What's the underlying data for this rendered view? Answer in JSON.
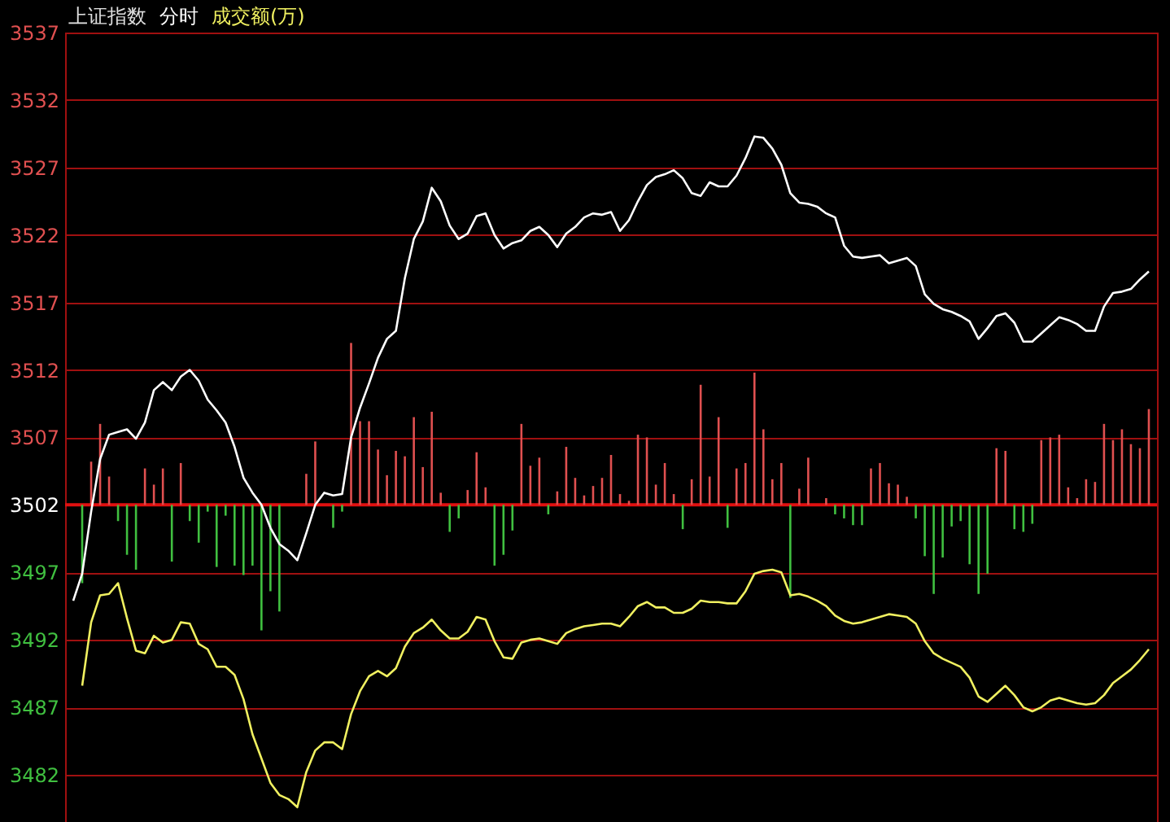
{
  "chart_data": {
    "type": "bar",
    "title": "上证指数",
    "grid": "y",
    "tick_labels": "y",
    "marker": "none",
    "categories": [
      null,
      null,
      null,
      null,
      null,
      null,
      null,
      null,
      null,
      null,
      null,
      null,
      null,
      null,
      null,
      null,
      null,
      null,
      null,
      null,
      null,
      null,
      null,
      null,
      null,
      null,
      null,
      null,
      null,
      null,
      null,
      null,
      null,
      null,
      null,
      null,
      null,
      null,
      null,
      null,
      null,
      null,
      null,
      null,
      null,
      null,
      null,
      null,
      null,
      null,
      null,
      null,
      null,
      null,
      null,
      null,
      null,
      null,
      null,
      null,
      null,
      null,
      null,
      null,
      null,
      null,
      null,
      null,
      null,
      null,
      null,
      null,
      null,
      null,
      null,
      null,
      null,
      null,
      null,
      null,
      null,
      null,
      null,
      null,
      null,
      null,
      null,
      null,
      null,
      null,
      null,
      null,
      null,
      null,
      null,
      null,
      null,
      null,
      null,
      null,
      null,
      null,
      null,
      null,
      null,
      null,
      null,
      null,
      null,
      null,
      null,
      null,
      null,
      null,
      null,
      null,
      null,
      null,
      null,
      null,
      null
    ],
    "ylim": [
      3478.5,
      3537
    ],
    "yticks": [
      3482,
      3487,
      3492,
      3497,
      3502,
      3507,
      3512,
      3517,
      3522,
      3527,
      3532,
      3537
    ],
    "ref_lines": [
      {
        "axis": "y",
        "value": 3502,
        "color": "#e01010"
      }
    ],
    "series": [
      {
        "color": "#e05050",
        "base": [
          null,
          null,
          3502,
          3502,
          3502,
          null,
          null,
          null,
          3502,
          3502,
          3502,
          null,
          3502,
          null,
          null,
          null,
          null,
          null,
          null,
          null,
          null,
          null,
          null,
          null,
          null,
          null,
          3502,
          3502,
          null,
          null,
          null,
          3502,
          3502,
          3502,
          3502,
          3502,
          3502,
          3502,
          3502,
          3502,
          3502,
          3502,
          null,
          null,
          3502,
          3502,
          3502,
          null,
          null,
          null,
          3502,
          3502,
          3502,
          null,
          3502,
          3502,
          3502,
          3502,
          3502,
          3502,
          3502,
          3502,
          3502,
          3502,
          3502,
          3502,
          3502,
          3502,
          null,
          3502,
          3502,
          3502,
          3502,
          null,
          3502,
          3502,
          3502,
          3502,
          3502,
          3502,
          null,
          3502,
          3502,
          null,
          3502,
          null,
          null,
          null,
          null,
          3502,
          3502,
          3502,
          3502,
          3502,
          null,
          null,
          null,
          null,
          null,
          null,
          null,
          null,
          null,
          3502,
          3502,
          null,
          null,
          null,
          3502,
          3502,
          3502,
          3502,
          3502,
          3502,
          3502,
          3502,
          3502,
          3502,
          3502,
          3502,
          3502
        ],
        "values": [
          null,
          null,
          3.2,
          6.0,
          2.1,
          null,
          null,
          null,
          2.7,
          1.5,
          2.7,
          null,
          3.1,
          null,
          null,
          null,
          null,
          null,
          null,
          null,
          null,
          null,
          null,
          null,
          null,
          null,
          2.3,
          4.7,
          null,
          null,
          null,
          12.0,
          6.2,
          6.2,
          4.1,
          2.2,
          4.0,
          3.6,
          6.5,
          2.8,
          6.9,
          0.9,
          null,
          null,
          1.1,
          3.9,
          1.3,
          null,
          null,
          null,
          6.0,
          2.9,
          3.5,
          null,
          1.0,
          4.3,
          2.0,
          0.7,
          1.4,
          2.0,
          3.7,
          0.8,
          0.3,
          5.2,
          5.0,
          1.5,
          3.1,
          0.8,
          null,
          1.9,
          8.9,
          2.1,
          6.5,
          null,
          2.7,
          3.1,
          9.8,
          5.6,
          1.9,
          3.1,
          null,
          1.2,
          3.5,
          null,
          0.5,
          null,
          null,
          null,
          null,
          2.7,
          3.1,
          1.6,
          1.5,
          0.6,
          null,
          null,
          null,
          null,
          null,
          null,
          null,
          null,
          null,
          4.2,
          4.0,
          null,
          null,
          null,
          4.8,
          5.0,
          5.2,
          1.3,
          0.5,
          1.9,
          1.7,
          6.0,
          4.8,
          5.6,
          4.5,
          4.2,
          7.1
        ]
      },
      {
        "color": "#40c040",
        "base": [
          null,
          3502,
          null,
          null,
          null,
          3502,
          3502,
          3502,
          null,
          null,
          null,
          3502,
          null,
          3502,
          3502,
          3502,
          3502,
          3502,
          3502,
          3502,
          3502,
          3502,
          3502,
          3502,
          null,
          null,
          null,
          null,
          null,
          3502,
          3502,
          null,
          null,
          null,
          null,
          null,
          null,
          null,
          null,
          null,
          null,
          null,
          3502,
          3502,
          null,
          null,
          null,
          3502,
          3502,
          3502,
          null,
          null,
          null,
          3502,
          null,
          null,
          null,
          null,
          null,
          null,
          null,
          null,
          null,
          null,
          null,
          null,
          null,
          null,
          3502,
          null,
          null,
          null,
          null,
          3502,
          null,
          null,
          null,
          null,
          null,
          null,
          3502,
          null,
          null,
          null,
          null,
          3502,
          3502,
          3502,
          3502,
          null,
          null,
          null,
          null,
          null,
          3502,
          3502,
          3502,
          3502,
          3502,
          3502,
          3502,
          3502,
          3502,
          null,
          null,
          3502,
          3502,
          3502,
          null,
          null,
          null,
          null,
          null,
          null,
          null,
          null,
          null,
          null,
          null,
          null,
          null
        ],
        "values": [
          null,
          -5.8,
          null,
          null,
          null,
          -1.2,
          -3.7,
          -4.8,
          null,
          null,
          null,
          -4.2,
          null,
          -1.2,
          -2.8,
          -0.5,
          -4.6,
          -0.8,
          -4.5,
          -5.2,
          -4.5,
          -9.3,
          -6.4,
          -7.9,
          null,
          null,
          null,
          null,
          null,
          -1.7,
          -0.5,
          null,
          null,
          null,
          null,
          null,
          null,
          null,
          null,
          null,
          null,
          null,
          -2.0,
          -1.0,
          null,
          null,
          null,
          -4.5,
          -3.7,
          -1.9,
          null,
          null,
          null,
          -0.7,
          null,
          null,
          null,
          null,
          null,
          null,
          null,
          null,
          null,
          null,
          null,
          null,
          null,
          null,
          -1.8,
          null,
          null,
          null,
          null,
          -1.7,
          null,
          null,
          null,
          null,
          null,
          null,
          -6.9,
          null,
          null,
          null,
          null,
          -0.7,
          -1.0,
          -1.5,
          -1.5,
          null,
          null,
          null,
          null,
          null,
          -1.0,
          -3.8,
          -6.6,
          -3.9,
          -1.6,
          -1.2,
          -4.4,
          -6.6,
          -5.1,
          null,
          null,
          -1.8,
          -2.0,
          -1.4,
          null,
          null,
          null,
          null,
          null,
          null,
          null,
          null,
          null,
          null,
          null,
          null,
          null
        ]
      },
      {
        "type": "line",
        "name": "分时",
        "color": "#ffffff",
        "values": [
          3494.9,
          3496.9,
          3501.5,
          3505.4,
          3507.2,
          3507.4,
          3507.6,
          3506.9,
          3508.1,
          3510.5,
          3511.1,
          3510.5,
          3511.5,
          3512.0,
          3511.2,
          3509.8,
          3509.0,
          3508.1,
          3506.3,
          3504.0,
          3502.9,
          3502.0,
          3500.3,
          3499.1,
          3498.6,
          3497.9,
          3499.9,
          3502.0,
          3502.9,
          3502.7,
          3502.8,
          3507.0,
          3509.2,
          3511.0,
          3512.9,
          3514.3,
          3514.9,
          3518.8,
          3521.7,
          3523.0,
          3525.5,
          3524.5,
          3522.7,
          3521.7,
          3522.1,
          3523.4,
          3523.6,
          3522.0,
          3521.0,
          3521.4,
          3521.6,
          3522.3,
          3522.6,
          3522.0,
          3521.1,
          3522.1,
          3522.6,
          3523.3,
          3523.6,
          3523.5,
          3523.7,
          3522.3,
          3523.1,
          3524.5,
          3525.7,
          3526.3,
          3526.5,
          3526.8,
          3526.2,
          3525.1,
          3524.9,
          3525.9,
          3525.6,
          3525.6,
          3526.4,
          3527.7,
          3529.3,
          3529.2,
          3528.4,
          3527.2,
          3525.1,
          3524.4,
          3524.3,
          3524.1,
          3523.6,
          3523.3,
          3521.2,
          3520.4,
          3520.3,
          3520.4,
          3520.5,
          3519.9,
          3520.1,
          3520.3,
          3519.7,
          3517.6,
          3516.9,
          3516.5,
          3516.3,
          3516.0,
          3515.6,
          3514.3,
          3515.1,
          3516.0,
          3516.2,
          3515.5,
          3514.1,
          3514.1,
          3514.7,
          3515.3,
          3515.9,
          3515.7,
          3515.4,
          3514.9,
          3514.9,
          3516.7,
          3517.7,
          3517.8,
          3518.0,
          3518.7,
          3519.3
        ]
      },
      {
        "type": "line",
        "name": "成交额(万)",
        "color": "#f0f060",
        "values": [
          null,
          3488.6,
          3493.3,
          3495.3,
          3495.4,
          3496.2,
          3493.6,
          3491.2,
          3491.0,
          3492.3,
          3491.8,
          3492.0,
          3493.3,
          3493.2,
          3491.7,
          3491.3,
          3490.0,
          3490.0,
          3489.4,
          3487.6,
          3485.0,
          3483.2,
          3481.4,
          3480.5,
          3480.2,
          3479.6,
          3482.2,
          3483.8,
          3484.4,
          3484.4,
          3483.9,
          3486.5,
          3488.2,
          3489.3,
          3489.7,
          3489.3,
          3489.9,
          3491.5,
          3492.5,
          3492.9,
          3493.5,
          3492.7,
          3492.1,
          3492.1,
          3492.6,
          3493.7,
          3493.5,
          3491.9,
          3490.7,
          3490.6,
          3491.8,
          3492.0,
          3492.1,
          3491.9,
          3491.7,
          3492.5,
          3492.8,
          3493.0,
          3493.1,
          3493.2,
          3493.2,
          3493.0,
          3493.7,
          3494.5,
          3494.8,
          3494.4,
          3494.4,
          3494.0,
          3494.0,
          3494.3,
          3494.9,
          3494.8,
          3494.8,
          3494.7,
          3494.7,
          3495.6,
          3496.9,
          3497.1,
          3497.2,
          3497.0,
          3495.3,
          3495.4,
          3495.2,
          3494.9,
          3494.5,
          3493.8,
          3493.4,
          3493.2,
          3493.3,
          3493.5,
          3493.7,
          3493.9,
          3493.8,
          3493.7,
          3493.2,
          3491.9,
          3491.0,
          3490.6,
          3490.3,
          3490.0,
          3489.2,
          3487.8,
          3487.4,
          3488.0,
          3488.6,
          3487.9,
          3487.0,
          3486.7,
          3487.0,
          3487.5,
          3487.7,
          3487.5,
          3487.3,
          3487.2,
          3487.3,
          3487.9,
          3488.8,
          3489.3,
          3489.8,
          3490.5,
          3491.3
        ]
      }
    ]
  }
}
